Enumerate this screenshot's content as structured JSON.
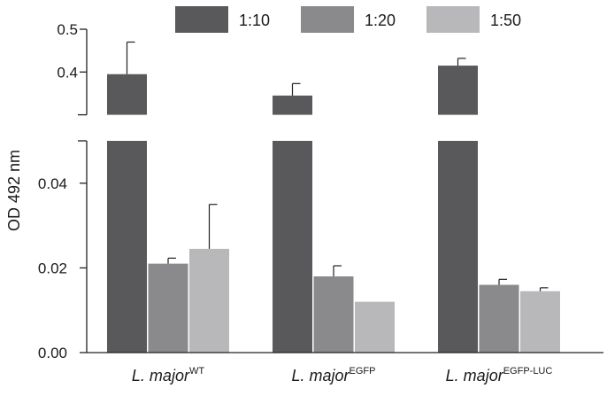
{
  "chart_data": {
    "type": "bar",
    "ylabel": "OD 492 nm",
    "y_axis_break": {
      "lower_range": [
        0,
        0.05
      ],
      "upper_range": [
        0.3,
        0.5
      ]
    },
    "lower_ticks": [
      "0.00",
      "0.02",
      "0.04"
    ],
    "upper_ticks": [
      "0.4",
      "0.5"
    ],
    "categories": [
      {
        "name": "L. major",
        "sup": "WT"
      },
      {
        "name": "L. major",
        "sup": "EGFP"
      },
      {
        "name": "L. major",
        "sup": "EGFP-LUC"
      }
    ],
    "series": [
      {
        "name": "1:10",
        "color": "#59595b",
        "values": [
          0.395,
          0.345,
          0.415
        ],
        "errors": [
          0.075,
          0.028,
          0.017
        ]
      },
      {
        "name": "1:20",
        "color": "#8a8a8c",
        "values": [
          0.021,
          0.018,
          0.016
        ],
        "errors": [
          0.0013,
          0.0025,
          0.0013
        ]
      },
      {
        "name": "1:50",
        "color": "#b8b8ba",
        "values": [
          0.0245,
          0.012,
          0.0145
        ],
        "errors": [
          0.0105,
          0,
          0.0008
        ]
      }
    ]
  }
}
